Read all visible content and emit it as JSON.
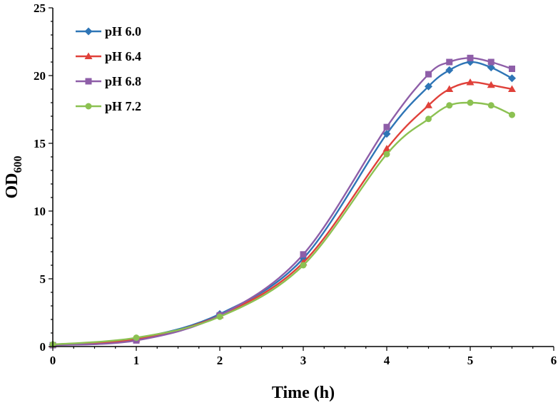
{
  "chart_data": {
    "type": "line",
    "title": "",
    "xlabel": "Time (h)",
    "ylabel_main": "OD",
    "ylabel_sub": "600",
    "xlim": [
      0,
      6
    ],
    "ylim": [
      0,
      25
    ],
    "x_ticks": [
      0,
      1,
      2,
      3,
      4,
      5,
      6
    ],
    "y_ticks": [
      0,
      5,
      10,
      15,
      20,
      25
    ],
    "x_tick_labels": [
      "0",
      "1",
      "2",
      "3",
      "4",
      "5",
      "6"
    ],
    "y_tick_labels": [
      "0",
      "5",
      "10",
      "15",
      "20",
      "25"
    ],
    "legend_position": "top-left",
    "grid": false,
    "series": [
      {
        "name": "pH 6.0",
        "color": "#2E75B6",
        "marker": "diamond",
        "x": [
          0,
          1,
          2,
          3,
          4,
          4.5,
          4.75,
          5,
          5.25,
          5.5
        ],
        "y": [
          0.15,
          0.6,
          2.4,
          6.5,
          15.7,
          19.2,
          20.4,
          21.0,
          20.6,
          19.8
        ]
      },
      {
        "name": "pH 6.4",
        "color": "#E0413A",
        "marker": "triangle",
        "x": [
          0,
          1,
          2,
          3,
          4,
          4.5,
          4.75,
          5,
          5.25,
          5.5
        ],
        "y": [
          0.15,
          0.55,
          2.3,
          6.2,
          14.6,
          17.8,
          19.0,
          19.5,
          19.3,
          19.0
        ]
      },
      {
        "name": "pH 6.8",
        "color": "#8E5EA8",
        "marker": "square",
        "x": [
          0,
          1,
          2,
          3,
          4,
          4.5,
          4.75,
          5,
          5.25,
          5.5
        ],
        "y": [
          0.1,
          0.45,
          2.3,
          6.8,
          16.2,
          20.1,
          21.0,
          21.3,
          21.0,
          20.5
        ]
      },
      {
        "name": "pH 7.2",
        "color": "#8CC152",
        "marker": "circle",
        "x": [
          0,
          1,
          2,
          3,
          4,
          4.5,
          4.75,
          5,
          5.25,
          5.5
        ],
        "y": [
          0.15,
          0.65,
          2.2,
          6.0,
          14.2,
          16.8,
          17.8,
          18.0,
          17.8,
          17.1
        ]
      }
    ]
  }
}
